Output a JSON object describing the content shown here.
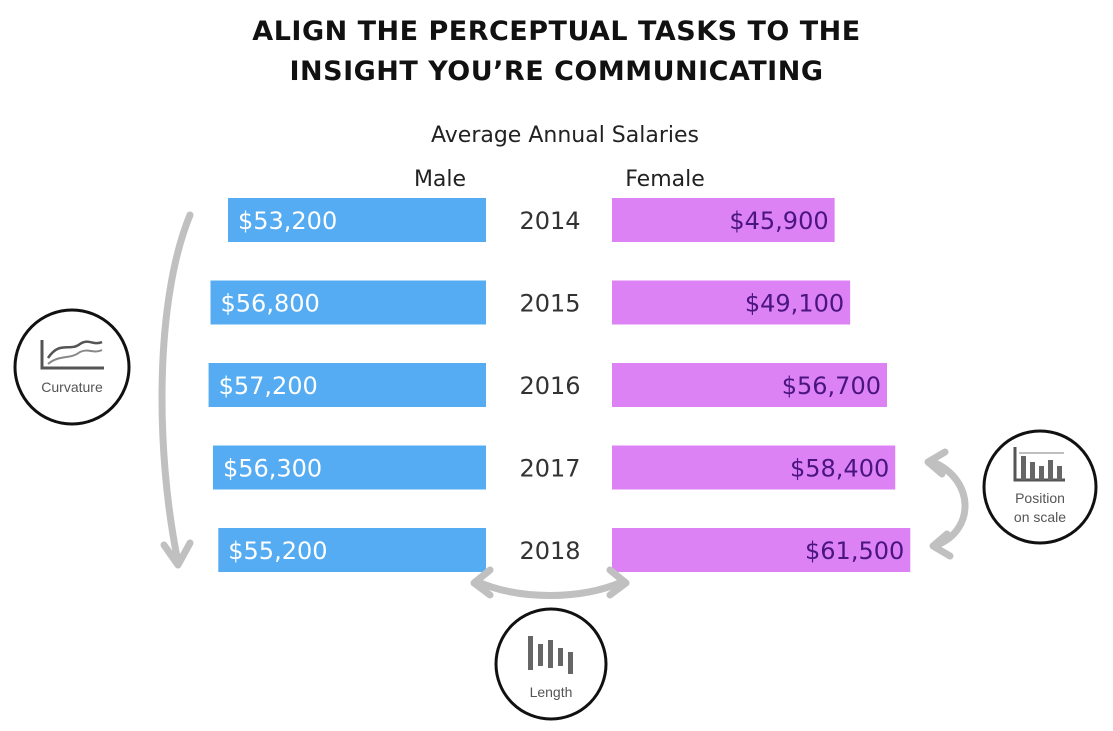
{
  "headline": {
    "line1": "ALIGN THE PERCEPTUAL TASKS TO THE",
    "line2": "INSIGHT YOU’RE COMMUNICATING"
  },
  "chart_data": {
    "type": "bar",
    "title": "Average Annual Salaries",
    "categories": [
      "2014",
      "2015",
      "2016",
      "2017",
      "2018"
    ],
    "series": [
      {
        "name": "Male",
        "values": [
          53200,
          56800,
          57200,
          56300,
          55200
        ],
        "labels": [
          "$53,200",
          "$56,800",
          "$57,200",
          "$56,300",
          "$55,200"
        ],
        "color": "#55acf2"
      },
      {
        "name": "Female",
        "values": [
          45900,
          49100,
          56700,
          58400,
          61500
        ],
        "labels": [
          "$45,900",
          "$49,100",
          "$56,700",
          "$58,400",
          "$61,500"
        ],
        "color": "#dd82f5"
      }
    ],
    "layout": "diverging-horizontal",
    "annotations": [
      {
        "label": "Curvature",
        "icon": "line-chart-icon"
      },
      {
        "label": "Position on scale",
        "lines": [
          "Position",
          "on scale"
        ],
        "icon": "bar-chart-baseline-icon"
      },
      {
        "label": "Length",
        "icon": "vertical-bars-icon"
      }
    ],
    "colors": {
      "male": "#55acf2",
      "female": "#dd82f5",
      "female_text": "#4a1580",
      "arrow": "#c0c0c0"
    }
  }
}
